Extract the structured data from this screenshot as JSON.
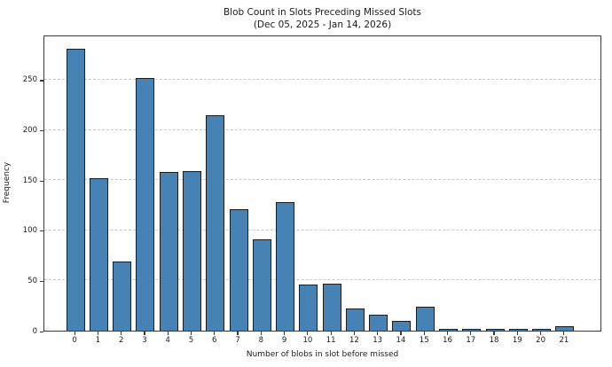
{
  "chart_data": {
    "type": "bar",
    "title": "Blob Count in Slots Preceding Missed Slots",
    "subtitle": "(Dec 05, 2025 - Jan 14, 2026)",
    "xlabel": "Number of blobs in slot before missed",
    "ylabel": "Frequency",
    "categories": [
      "0",
      "1",
      "2",
      "3",
      "4",
      "5",
      "6",
      "7",
      "8",
      "9",
      "10",
      "11",
      "12",
      "13",
      "14",
      "15",
      "16",
      "17",
      "18",
      "19",
      "20",
      "21"
    ],
    "values": [
      281,
      152,
      69,
      252,
      158,
      159,
      215,
      121,
      91,
      128,
      46,
      47,
      22,
      16,
      10,
      24,
      2,
      2,
      2,
      2,
      2,
      4
    ],
    "ylim": [
      0,
      295
    ],
    "yticks": [
      0,
      50,
      100,
      150,
      200,
      250
    ],
    "grid": "horizontal-dashed",
    "legend": "none",
    "bar_color": "#4682b4",
    "bar_edge_color": "#1c1c1c",
    "grid_color": "#c9c9c9",
    "spine_color": "#3a3a3a",
    "background_color": "#ffffff"
  }
}
